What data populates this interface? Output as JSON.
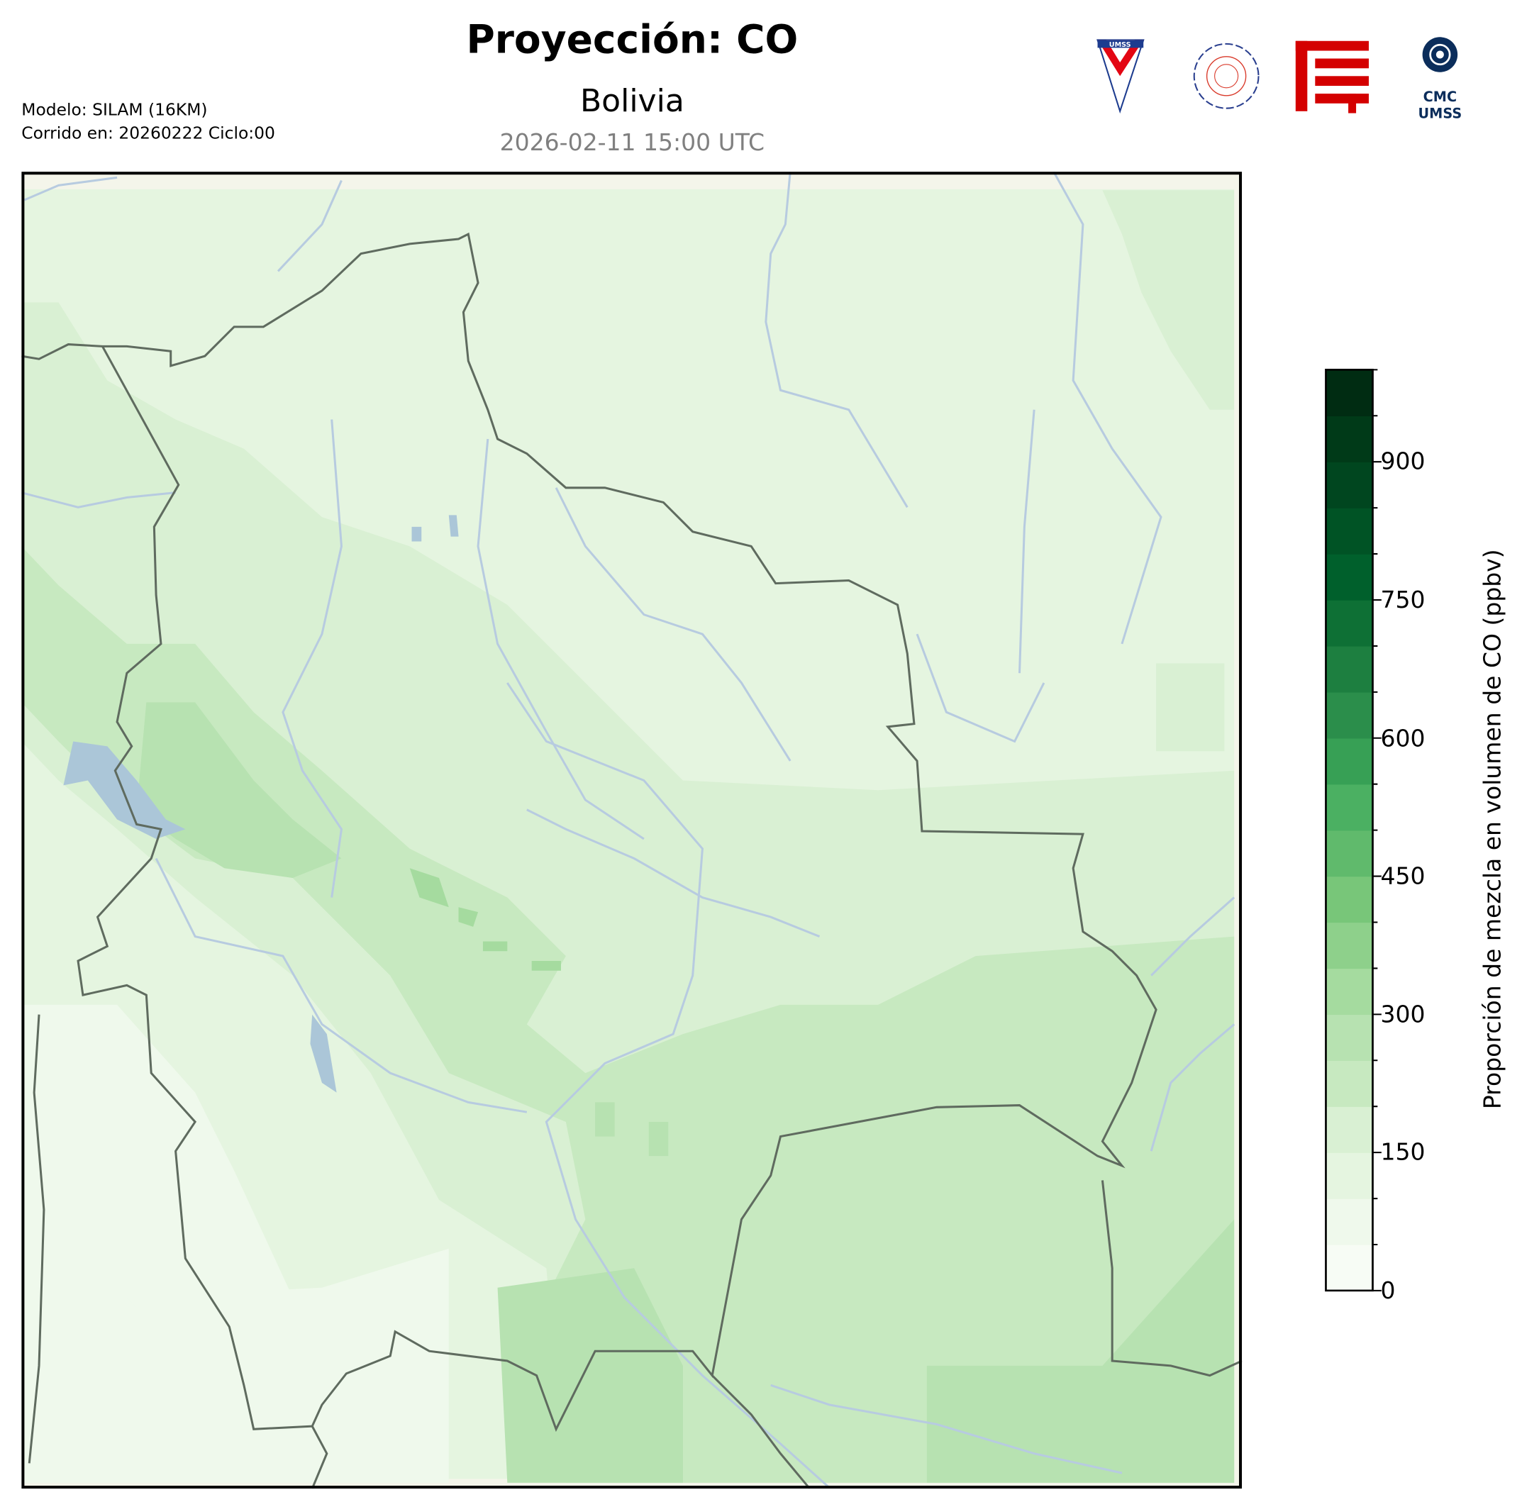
{
  "header": {
    "title": "Proyección: CO",
    "subtitle": "Bolivia",
    "valid_time": "2026-02-11 15:00 UTC",
    "model": "Modelo: SILAM (16KM)",
    "run": "Corrido en: 20260222 Ciclo:00"
  },
  "logos": [
    {
      "name": "umss-shield-logo",
      "text": "UMSS",
      "colors": [
        "#e30613",
        "#1d3c8f"
      ]
    },
    {
      "name": "departamento-de-fisica-seal",
      "text": "DEPARTAMENTO DE FISICA",
      "colors": [
        "#2a3f8f",
        "#d93a2b"
      ]
    },
    {
      "name": "fcyt-logo",
      "colors": [
        "#d40000"
      ]
    },
    {
      "name": "cmc-umss-logo",
      "text": "CMC UMSS",
      "colors": [
        "#0b2d5b"
      ]
    }
  ],
  "colorbar": {
    "label": "Proporción de mezcla en volumen de CO (ppbv)",
    "min": 0,
    "max": 1000,
    "step": 50,
    "ticks": [
      "0",
      "150",
      "300",
      "450",
      "600",
      "750",
      "900"
    ],
    "colormap": "Greens",
    "colors": [
      "#f7fcf5",
      "#eff9ec",
      "#e5f5e0",
      "#d9f0d3",
      "#c7e9c0",
      "#b7e2b1",
      "#a5db9f",
      "#8ed08b",
      "#78c679",
      "#60ba6c",
      "#4bb062",
      "#37a055",
      "#2b8e4b",
      "#1d7f40",
      "#0e7035",
      "#00602c",
      "#005325",
      "#00461f",
      "#003a18",
      "#002c12"
    ]
  },
  "map": {
    "region": "Bolivia",
    "colors": {
      "border": "#5f6b5f",
      "river": "#b7cbe0",
      "lake": "#abc6d8",
      "nodata": "#f4f5ea"
    }
  }
}
